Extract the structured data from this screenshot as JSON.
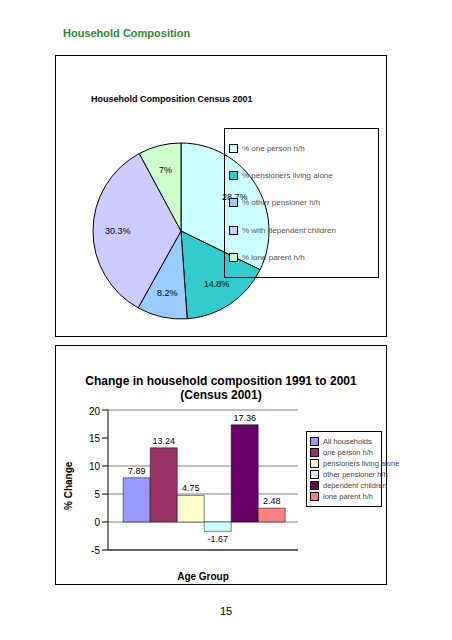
{
  "heading": "Household Composition",
  "page_number": 15,
  "chart_data": [
    {
      "type": "pie",
      "title": "Household Composition Census 2001",
      "categories": [
        "% one person h/h",
        "% pensioners living alone",
        "% other pensioner h/h",
        "% with dependent children",
        "% lone parent h/h"
      ],
      "values": [
        28.7,
        14.8,
        8.2,
        30.3,
        7
      ],
      "value_labels": [
        "28.7%",
        "14.8%",
        "8.2%",
        "30.3%",
        "7%"
      ],
      "colors": [
        "#ccffff",
        "#33cccc",
        "#99ccff",
        "#ccccff",
        "#ccffcc"
      ],
      "data_labels": true,
      "legend": "right"
    },
    {
      "type": "bar",
      "title": "Change in household composition 1991 to 2001 (Census 2001)",
      "x_label": "Age Group",
      "y_label": "% Change",
      "categories": [
        null
      ],
      "series": [
        {
          "name": "All households",
          "color": "#9999ff",
          "values": [
            7.89
          ]
        },
        {
          "name": "one person h/h",
          "color": "#993366",
          "values": [
            13.24
          ]
        },
        {
          "name": "pensioners living alone",
          "color": "#ffffcc",
          "values": [
            4.75
          ]
        },
        {
          "name": "other pensioner h/h",
          "color": "#ccffff",
          "values": [
            -1.67
          ]
        },
        {
          "name": "dependent children",
          "color": "#660066",
          "values": [
            17.36
          ]
        },
        {
          "name": "lone parent h/h",
          "color": "#ff8080",
          "values": [
            2.48
          ]
        }
      ],
      "ylim": [
        -5,
        20
      ],
      "yticks": [
        -5,
        0,
        5,
        10,
        15,
        20
      ],
      "grid": true,
      "data_labels": true,
      "tick_labels": "y",
      "legend": "right"
    }
  ]
}
